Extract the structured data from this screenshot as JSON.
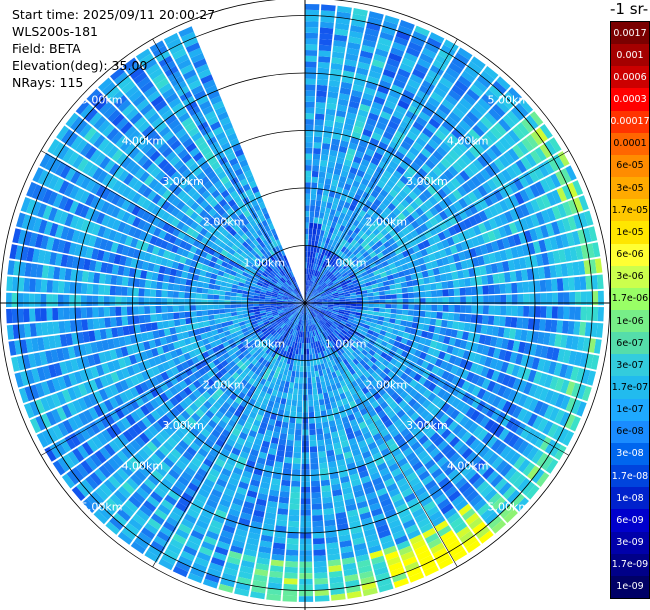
{
  "info": {
    "start_time": "Start time: 2025/09/11 20:00:27",
    "instrument": "WLS200s-181",
    "field": "Field: BETA",
    "elevation": "Elevation(deg): 35.00",
    "nrays": "NRays: 115"
  },
  "colorbar": {
    "title": "-1 sr-",
    "labels": [
      "0.0017",
      "0.001",
      "0.0006",
      "0.0003",
      "0.00017",
      "0.0001",
      "6e-05",
      "3e-05",
      "1.7e-05",
      "1e-05",
      "6e-06",
      "3e-06",
      "1.7e-06",
      "1e-06",
      "6e-07",
      "3e-07",
      "1.7e-07",
      "1e-07",
      "6e-08",
      "3e-08",
      "1.7e-08",
      "1e-08",
      "6e-09",
      "3e-09",
      "1.7e-09",
      "1e-09"
    ],
    "colors": [
      "#7a0000",
      "#a50000",
      "#cc0000",
      "#ff0000",
      "#ff3300",
      "#ff6600",
      "#ff8c00",
      "#ffaa00",
      "#ffc800",
      "#ffe600",
      "#ffff33",
      "#ccff4d",
      "#99ff66",
      "#77ee88",
      "#55ddaa",
      "#33ccdd",
      "#22bbee",
      "#1faaff",
      "#1a8cff",
      "#0066ee",
      "#0044dd",
      "#0022cc",
      "#0000cc",
      "#0000aa",
      "#000088",
      "#000066"
    ]
  },
  "chart_data": {
    "type": "ppi",
    "field": "BETA",
    "elevation_deg": 35.0,
    "n_rays": 115,
    "range_rings_km": [
      1,
      2,
      3,
      4,
      5
    ],
    "range_labels": [
      "1.00km",
      "2.00km",
      "3.00km",
      "4.00km",
      "5.00km"
    ],
    "max_range_km": 5.3,
    "scan_gap_azimuth_deg": [
      337,
      359
    ]
  }
}
